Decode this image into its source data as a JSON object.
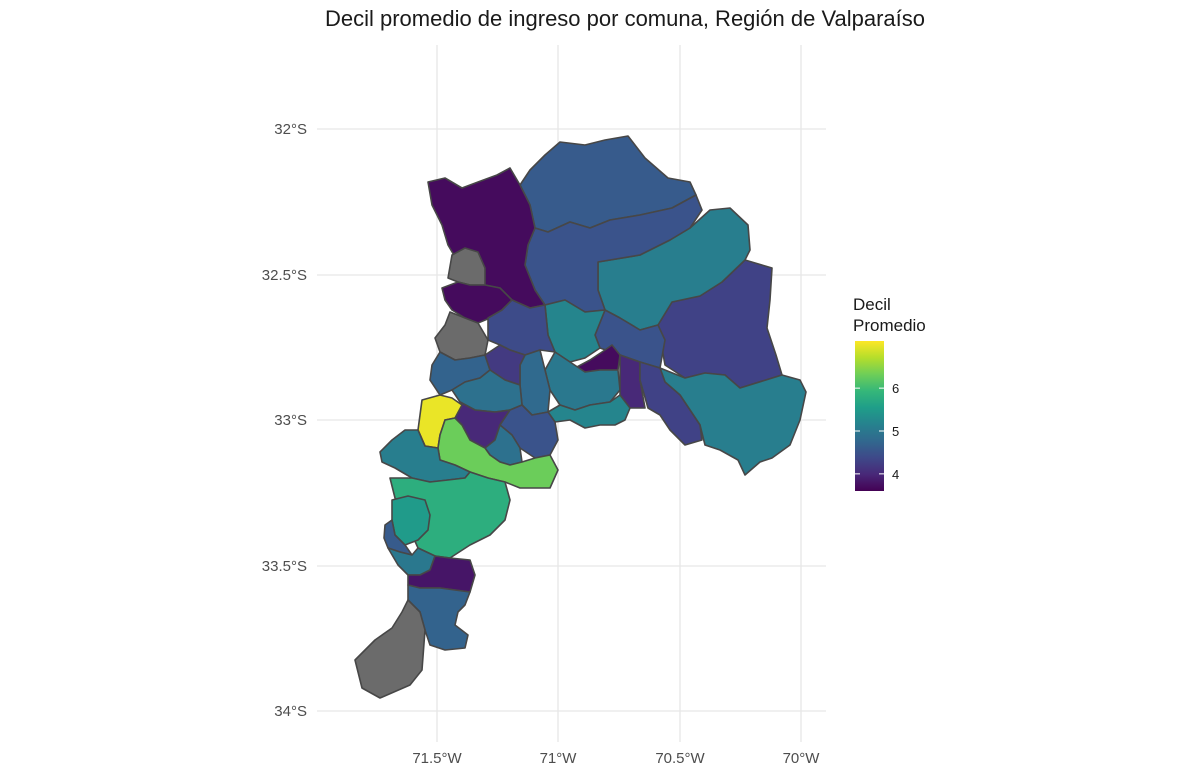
{
  "title": "Decil promedio de ingreso por comuna, Región de Valparaíso",
  "axes": {
    "x_ticks": [
      "71.5°W",
      "71°W",
      "70.5°W",
      "70°W"
    ],
    "y_ticks": [
      "32°S",
      "32.5°S",
      "33°S",
      "33.5°S",
      "34°S"
    ],
    "grid": true
  },
  "legend": {
    "title_line1": "Decil",
    "title_line2": "Promedio",
    "labels": [
      "6",
      "5",
      "4"
    ],
    "range": [
      3.6,
      7.1
    ],
    "palette": "viridis",
    "placement": "right"
  },
  "colors": {
    "missing": "#6b6b6b",
    "grid": "#e6e6e6",
    "viridis": [
      "#440154",
      "#482878",
      "#3e4989",
      "#31688e",
      "#26828e",
      "#1f9e89",
      "#35b779",
      "#6ece58",
      "#b5de2b",
      "#fde725"
    ]
  },
  "chart_data": {
    "type": "choropleth",
    "title": "Decil promedio de ingreso por comuna, Región de Valparaíso",
    "legend_title": "Decil Promedio",
    "x_range": [
      -71.85,
      -69.9
    ],
    "y_range": [
      -34.05,
      -31.75
    ],
    "regions": [
      {
        "id": "la-ligua",
        "value": 3.7
      },
      {
        "id": "petorca",
        "value": 4.6
      },
      {
        "id": "cabildo",
        "value": 4.5
      },
      {
        "id": "putaendo",
        "value": 5.1
      },
      {
        "id": "papudo",
        "value": null
      },
      {
        "id": "zapallar",
        "value": 3.7
      },
      {
        "id": "puchuncavi",
        "value": null
      },
      {
        "id": "nogales",
        "value": 4.3
      },
      {
        "id": "la-cruz",
        "value": 4.7
      },
      {
        "id": "catemu",
        "value": 4.4
      },
      {
        "id": "panquehue",
        "value": 5.0
      },
      {
        "id": "san-felipe",
        "value": 5.2
      },
      {
        "id": "santa-maria",
        "value": 4.5
      },
      {
        "id": "los-andes",
        "value": 4.3
      },
      {
        "id": "calle-larga",
        "value": 3.7
      },
      {
        "id": "san-esteban-area",
        "value": 5.1
      },
      {
        "id": "quintero",
        "value": 4.9
      },
      {
        "id": "quillota",
        "value": 4.9
      },
      {
        "id": "hijuelas",
        "value": 4.2
      },
      {
        "id": "llay-llay",
        "value": 4.8
      },
      {
        "id": "rinconada",
        "value": 4.0
      },
      {
        "id": "vina-del-mar",
        "value": 7.0
      },
      {
        "id": "limache",
        "value": 4.5
      },
      {
        "id": "olmue",
        "value": 4.0
      },
      {
        "id": "villa-alemana",
        "value": 4.9
      },
      {
        "id": "quilpue",
        "value": 6.3
      },
      {
        "id": "valparaiso",
        "value": 5.1
      },
      {
        "id": "casablanca",
        "value": 5.8
      },
      {
        "id": "algarrobo",
        "value": 5.5
      },
      {
        "id": "el-quisco",
        "value": 4.6
      },
      {
        "id": "el-tabo",
        "value": 5.0
      },
      {
        "id": "cartagena",
        "value": 3.8
      },
      {
        "id": "san-antonio",
        "value": 4.7
      },
      {
        "id": "santo-domingo",
        "value": null
      },
      {
        "id": "concon",
        "value": 5.2
      }
    ]
  }
}
